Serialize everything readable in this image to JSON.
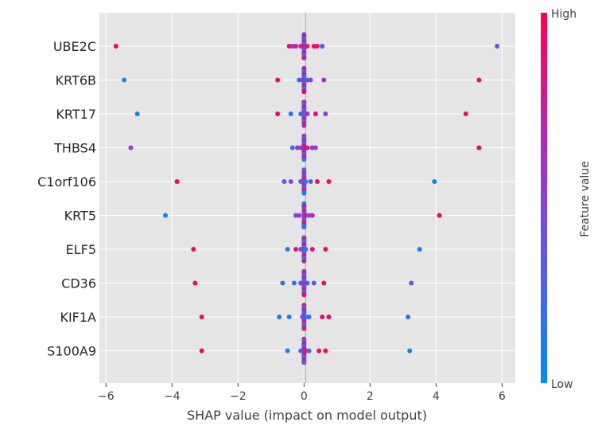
{
  "chart_data": {
    "type": "scatter",
    "subtype": "shap-beeswarm",
    "xlabel": "SHAP value (impact on model output)",
    "xlim": [
      -6.2,
      6.4
    ],
    "xticks": [
      -6,
      -4,
      -2,
      0,
      2,
      4,
      6
    ],
    "grid": true,
    "colorbar": {
      "title": "Feature value",
      "high_label": "High",
      "low_label": "Low",
      "high_color": "#ff0052",
      "low_color": "#008bfb"
    },
    "features": [
      {
        "name": "UBE2C",
        "points": [
          {
            "x": -5.7,
            "v": 0.95
          },
          {
            "x": 5.85,
            "v": 0.45
          },
          {
            "x": -0.45,
            "v": 0.9
          },
          {
            "x": -0.35,
            "v": 0.6
          },
          {
            "x": -0.25,
            "v": 0.75
          },
          {
            "x": -0.1,
            "v": 0.85
          },
          {
            "x": -0.05,
            "v": 0.5
          },
          {
            "x": 0.0,
            "v": 0.9
          },
          {
            "x": 0.05,
            "v": 0.7
          },
          {
            "x": 0.1,
            "v": 0.8
          },
          {
            "x": 0.3,
            "v": 0.95
          },
          {
            "x": 0.4,
            "v": 0.9
          },
          {
            "x": 0.55,
            "v": 0.35
          }
        ]
      },
      {
        "name": "KRT6B",
        "points": [
          {
            "x": -5.45,
            "v": 0.1
          },
          {
            "x": -0.8,
            "v": 0.95
          },
          {
            "x": 5.3,
            "v": 0.95
          },
          {
            "x": -0.15,
            "v": 0.2
          },
          {
            "x": -0.05,
            "v": 0.4
          },
          {
            "x": 0.0,
            "v": 0.6
          },
          {
            "x": 0.05,
            "v": 0.3
          },
          {
            "x": 0.1,
            "v": 0.25
          },
          {
            "x": 0.2,
            "v": 0.5
          },
          {
            "x": 0.6,
            "v": 0.6
          }
        ]
      },
      {
        "name": "KRT17",
        "points": [
          {
            "x": -5.05,
            "v": 0.1
          },
          {
            "x": -0.8,
            "v": 0.95
          },
          {
            "x": 4.9,
            "v": 0.95
          },
          {
            "x": -0.4,
            "v": 0.15
          },
          {
            "x": -0.1,
            "v": 0.2
          },
          {
            "x": 0.0,
            "v": 0.5
          },
          {
            "x": 0.05,
            "v": 0.3
          },
          {
            "x": 0.1,
            "v": 0.6
          },
          {
            "x": 0.35,
            "v": 0.9
          },
          {
            "x": 0.65,
            "v": 0.5
          }
        ]
      },
      {
        "name": "THBS4",
        "points": [
          {
            "x": -5.25,
            "v": 0.5
          },
          {
            "x": 5.3,
            "v": 0.95
          },
          {
            "x": -0.35,
            "v": 0.2
          },
          {
            "x": -0.2,
            "v": 0.6
          },
          {
            "x": -0.1,
            "v": 0.4
          },
          {
            "x": 0.0,
            "v": 0.7
          },
          {
            "x": 0.1,
            "v": 0.8
          },
          {
            "x": 0.25,
            "v": 0.6
          },
          {
            "x": 0.35,
            "v": 0.5
          }
        ]
      },
      {
        "name": "C1orf106",
        "points": [
          {
            "x": -3.85,
            "v": 0.95
          },
          {
            "x": 3.95,
            "v": 0.05
          },
          {
            "x": -0.6,
            "v": 0.35
          },
          {
            "x": -0.4,
            "v": 0.5
          },
          {
            "x": -0.1,
            "v": 0.3
          },
          {
            "x": 0.0,
            "v": 0.6
          },
          {
            "x": 0.05,
            "v": 0.2
          },
          {
            "x": 0.2,
            "v": 0.25
          },
          {
            "x": 0.4,
            "v": 0.9
          },
          {
            "x": 0.75,
            "v": 0.95
          }
        ]
      },
      {
        "name": "KRT5",
        "points": [
          {
            "x": -4.2,
            "v": 0.05
          },
          {
            "x": 4.1,
            "v": 0.95
          },
          {
            "x": -0.25,
            "v": 0.4
          },
          {
            "x": -0.15,
            "v": 0.6
          },
          {
            "x": 0.0,
            "v": 0.5
          },
          {
            "x": 0.05,
            "v": 0.8
          },
          {
            "x": 0.15,
            "v": 0.3
          },
          {
            "x": 0.25,
            "v": 0.7
          }
        ]
      },
      {
        "name": "ELF5",
        "points": [
          {
            "x": -3.35,
            "v": 0.95
          },
          {
            "x": 3.5,
            "v": 0.1
          },
          {
            "x": -0.5,
            "v": 0.15
          },
          {
            "x": -0.25,
            "v": 0.9
          },
          {
            "x": -0.1,
            "v": 0.4
          },
          {
            "x": 0.0,
            "v": 0.6
          },
          {
            "x": 0.05,
            "v": 0.2
          },
          {
            "x": 0.25,
            "v": 0.9
          },
          {
            "x": 0.65,
            "v": 0.95
          }
        ]
      },
      {
        "name": "CD36",
        "points": [
          {
            "x": -3.3,
            "v": 0.95
          },
          {
            "x": 3.25,
            "v": 0.35
          },
          {
            "x": -0.65,
            "v": 0.2
          },
          {
            "x": -0.3,
            "v": 0.15
          },
          {
            "x": -0.1,
            "v": 0.4
          },
          {
            "x": 0.0,
            "v": 0.6
          },
          {
            "x": 0.1,
            "v": 0.3
          },
          {
            "x": 0.3,
            "v": 0.35
          },
          {
            "x": 0.6,
            "v": 0.95
          }
        ]
      },
      {
        "name": "KIF1A",
        "points": [
          {
            "x": -3.1,
            "v": 0.95
          },
          {
            "x": 3.15,
            "v": 0.2
          },
          {
            "x": -0.75,
            "v": 0.15
          },
          {
            "x": -0.45,
            "v": 0.1
          },
          {
            "x": -0.05,
            "v": 0.3
          },
          {
            "x": 0.0,
            "v": 0.6
          },
          {
            "x": 0.05,
            "v": 0.2
          },
          {
            "x": 0.15,
            "v": 0.15
          },
          {
            "x": 0.55,
            "v": 0.9
          },
          {
            "x": 0.75,
            "v": 0.95
          }
        ]
      },
      {
        "name": "S100A9",
        "points": [
          {
            "x": -3.1,
            "v": 0.95
          },
          {
            "x": 3.2,
            "v": 0.05
          },
          {
            "x": -0.5,
            "v": 0.1
          },
          {
            "x": -0.1,
            "v": 0.3
          },
          {
            "x": 0.0,
            "v": 0.6
          },
          {
            "x": 0.05,
            "v": 0.8
          },
          {
            "x": 0.15,
            "v": 0.2
          },
          {
            "x": 0.45,
            "v": 0.9
          },
          {
            "x": 0.65,
            "v": 0.95
          }
        ]
      }
    ]
  }
}
